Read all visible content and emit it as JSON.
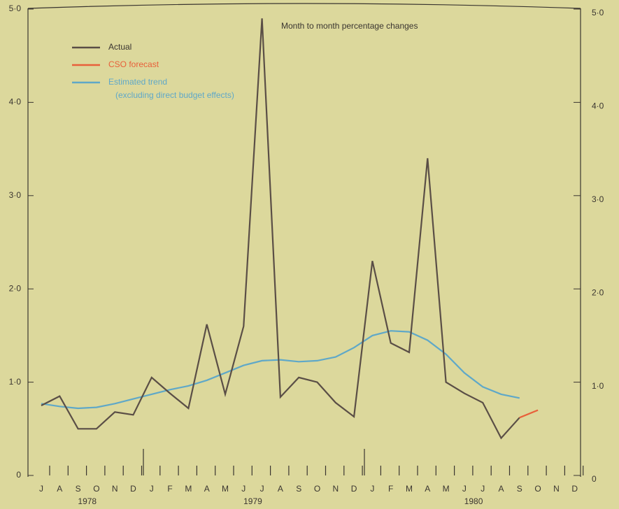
{
  "chart_data": {
    "type": "line",
    "annotation": "Month to month percentage changes",
    "categories": [
      "J",
      "A",
      "S",
      "O",
      "N",
      "D",
      "J",
      "F",
      "M",
      "A",
      "M",
      "J",
      "J",
      "A",
      "S",
      "O",
      "N",
      "D",
      "J",
      "F",
      "M",
      "A",
      "M",
      "J",
      "J",
      "A",
      "S",
      "O",
      "N",
      "D"
    ],
    "years": [
      "1978",
      "1979",
      "1980"
    ],
    "series": [
      {
        "name": "Actual",
        "color": "#5a4e46",
        "values": [
          0.75,
          0.85,
          0.5,
          0.5,
          0.68,
          0.65,
          1.05,
          0.88,
          0.72,
          1.62,
          0.87,
          1.6,
          4.9,
          0.84,
          1.05,
          1.0,
          0.78,
          0.63,
          2.3,
          1.42,
          1.32,
          3.4,
          1.0,
          0.88,
          0.78,
          0.4,
          0.62,
          null,
          null,
          null
        ]
      },
      {
        "name": "CSO forecast",
        "color": "#e8603a",
        "values": [
          null,
          null,
          null,
          null,
          null,
          null,
          null,
          null,
          null,
          null,
          null,
          null,
          null,
          null,
          null,
          null,
          null,
          null,
          null,
          null,
          null,
          null,
          null,
          null,
          null,
          null,
          0.62,
          0.7,
          null,
          null
        ]
      },
      {
        "name": "Estimated trend",
        "color": "#5fa8c8",
        "note": "(excluding direct budget effects)",
        "values": [
          0.77,
          0.74,
          0.72,
          0.73,
          0.77,
          0.82,
          0.87,
          0.92,
          0.96,
          1.02,
          1.1,
          1.18,
          1.23,
          1.24,
          1.22,
          1.23,
          1.27,
          1.37,
          1.5,
          1.55,
          1.54,
          1.45,
          1.3,
          1.1,
          0.95,
          0.87,
          0.83,
          null,
          null,
          null
        ]
      }
    ],
    "ylim": [
      0,
      5
    ],
    "yticks": [
      0,
      {
        "value": 1,
        "label": "1·0"
      },
      {
        "value": 2,
        "label": "2·0"
      },
      {
        "value": 3,
        "label": "3·0"
      },
      {
        "value": 4,
        "label": "4·0"
      },
      {
        "value": 5,
        "label": "5·0"
      }
    ]
  }
}
